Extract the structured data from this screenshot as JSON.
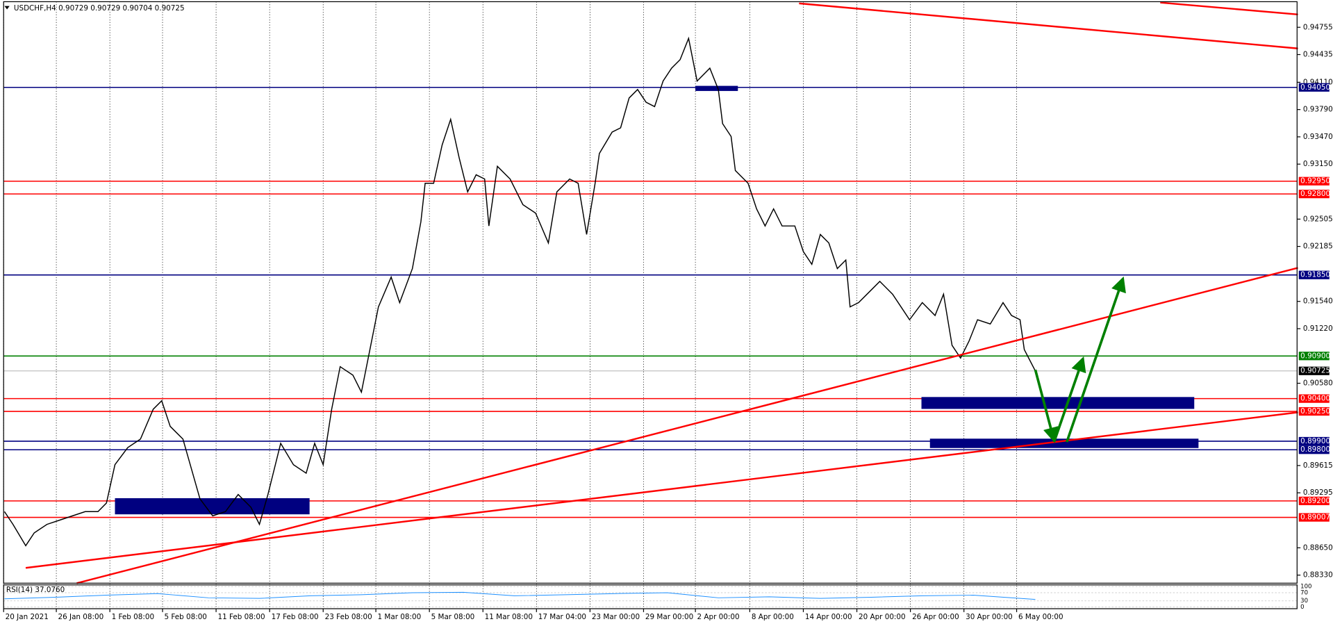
{
  "chart_data": {
    "type": "line",
    "title": "USDCHF,H4  0.90729 0.90729 0.90704 0.90725",
    "color": "#000000",
    "x": [
      1,
      3,
      6,
      8,
      11,
      14,
      17,
      20,
      23,
      25,
      27,
      30,
      33,
      36,
      38,
      40,
      43,
      45,
      47,
      50,
      53,
      56,
      59,
      61,
      63,
      66,
      69,
      72,
      74,
      76,
      78,
      80,
      83,
      85,
      87,
      89,
      92,
      94,
      97,
      99,
      100,
      102,
      104,
      106,
      108,
      110,
      112,
      114,
      115,
      117,
      120,
      123,
      126,
      129,
      131,
      134,
      136,
      138,
      140,
      141,
      144,
      146,
      148,
      150,
      152,
      154,
      156,
      158,
      160,
      162,
      164,
      167,
      169,
      170,
      172,
      173,
      176,
      178,
      180,
      182,
      184,
      187,
      189,
      191,
      193,
      195,
      197,
      199,
      200,
      202,
      204,
      207,
      210,
      212,
      214,
      217,
      220,
      222,
      224,
      226,
      228,
      230,
      233,
      236,
      238,
      240,
      241,
      243.6
    ],
    "values": [
      0.89075,
      0.88925,
      0.88675,
      0.88825,
      0.88925,
      0.88975,
      0.89025,
      0.89075,
      0.89075,
      0.89175,
      0.89625,
      0.89825,
      0.89925,
      0.90275,
      0.90375,
      0.90075,
      0.89925,
      0.89575,
      0.89225,
      0.89025,
      0.89075,
      0.89275,
      0.89125,
      0.88925,
      0.89275,
      0.89875,
      0.89625,
      0.89525,
      0.89875,
      0.89625,
      0.90275,
      0.90775,
      0.90675,
      0.90475,
      0.90975,
      0.91475,
      0.91825,
      0.91525,
      0.91925,
      0.92475,
      0.92925,
      0.92925,
      0.93375,
      0.93675,
      0.93225,
      0.92825,
      0.93025,
      0.92975,
      0.92425,
      0.93125,
      0.92975,
      0.92675,
      0.92575,
      0.92225,
      0.92825,
      0.92975,
      0.92925,
      0.92325,
      0.92925,
      0.93275,
      0.93525,
      0.93575,
      0.93925,
      0.94025,
      0.93875,
      0.93825,
      0.94125,
      0.94275,
      0.94375,
      0.94625,
      0.94125,
      0.94275,
      0.94025,
      0.93625,
      0.93475,
      0.93075,
      0.92925,
      0.92625,
      0.92425,
      0.92625,
      0.92425,
      0.92425,
      0.92125,
      0.91975,
      0.92325,
      0.92225,
      0.91925,
      0.92025,
      0.91475,
      0.91525,
      0.91625,
      0.91775,
      0.91625,
      0.91475,
      0.91325,
      0.91525,
      0.91375,
      0.91625,
      0.91025,
      0.90875,
      0.91075,
      0.91325,
      0.91275,
      0.91525,
      0.91375,
      0.91325,
      0.90975,
      0.90725
    ],
    "xlim": [
      0,
      305.2
    ],
    "ylim": [
      0.88235,
      0.95055
    ],
    "xticks": [
      {
        "value": 0.8,
        "label": "20 Jan 2021"
      },
      {
        "value": 13.2,
        "label": "26 Jan 08:00"
      },
      {
        "value": 25.8,
        "label": "1 Feb 08:00"
      },
      {
        "value": 38.2,
        "label": "5 Feb 08:00"
      },
      {
        "value": 50.8,
        "label": "11 Feb 08:00"
      },
      {
        "value": 63.4,
        "label": "17 Feb 08:00"
      },
      {
        "value": 76,
        "label": "23 Feb 08:00"
      },
      {
        "value": 88.4,
        "label": "1 Mar 08:00"
      },
      {
        "value": 101,
        "label": "5 Mar 08:00"
      },
      {
        "value": 113.6,
        "label": "11 Mar 08:00"
      },
      {
        "value": 126.2,
        "label": "17 Mar 04:00"
      },
      {
        "value": 138.8,
        "label": "23 Mar 00:00"
      },
      {
        "value": 151.4,
        "label": "29 Mar 00:00"
      },
      {
        "value": 163.6,
        "label": "2 Apr 00:00"
      },
      {
        "value": 176.4,
        "label": "8 Apr 00:00"
      },
      {
        "value": 189,
        "label": "14 Apr 00:00"
      },
      {
        "value": 201.6,
        "label": "20 Apr 00:00"
      },
      {
        "value": 214.2,
        "label": "26 Apr 00:00"
      },
      {
        "value": 226.8,
        "label": "30 Apr 00:00"
      },
      {
        "value": 239.2,
        "label": "6 May 00:00"
      }
    ],
    "yticks": [
      0.94755,
      0.94435,
      {
        "value": 0.9411,
        "label": "0.94110"
      },
      {
        "value": 0.9379,
        "label": "0.93790"
      },
      {
        "value": 0.9347,
        "label": "0.93470"
      },
      {
        "value": 0.9315,
        "label": "0.93150"
      },
      0.92505,
      0.92185,
      {
        "value": 0.9154,
        "label": "0.91540"
      },
      {
        "value": 0.9122,
        "label": "0.91220"
      },
      {
        "value": 0.9058,
        "label": "0.90580"
      },
      0.89615,
      0.89295,
      {
        "value": 0.8865,
        "label": "0.88650"
      },
      {
        "value": 0.8833,
        "label": "0.88330"
      }
    ],
    "grid": true,
    "levels": [
      {
        "value": 0.9405,
        "label": "0.94050",
        "color": "#000080"
      },
      {
        "value": 0.9295,
        "label": "0.92950",
        "color": "#ff0000"
      },
      {
        "value": 0.928,
        "label": "0.92800",
        "color": "#ff0000"
      },
      {
        "value": 0.9185,
        "label": "0.91850",
        "color": "#000080"
      },
      {
        "value": 0.909,
        "label": "0.90900",
        "color": "#008000"
      },
      {
        "value": 0.90725,
        "label": "0.90725",
        "color": "#000000"
      },
      {
        "value": 0.904,
        "label": "0.90400",
        "color": "#ff0000"
      },
      {
        "value": 0.9025,
        "label": "0.90250",
        "color": "#ff0000"
      },
      {
        "value": 0.899,
        "label": "0.89900",
        "color": "#000080"
      },
      {
        "value": 0.898,
        "label": "0.89800",
        "color": "#000080"
      },
      {
        "value": 0.892,
        "label": "0.89200",
        "color": "#ff0000"
      },
      {
        "value": 0.89007,
        "label": "0.89007",
        "color": "#ff0000"
      }
    ],
    "rsi": {
      "label": "RSI(14) 37.0760",
      "color": "#1e90ff",
      "x": [
        1,
        13,
        25,
        37,
        49,
        61,
        73,
        85,
        97,
        109,
        121,
        133,
        145,
        157,
        169,
        181,
        193,
        205,
        217,
        229,
        243.6
      ],
      "values": [
        40,
        48,
        58,
        66,
        45,
        42,
        55,
        60,
        70,
        72,
        55,
        60,
        66,
        70,
        45,
        50,
        42,
        48,
        55,
        58,
        37.076
      ],
      "ylim": [
        0,
        100
      ],
      "yticks": [
        0,
        30,
        70,
        100
      ]
    }
  }
}
